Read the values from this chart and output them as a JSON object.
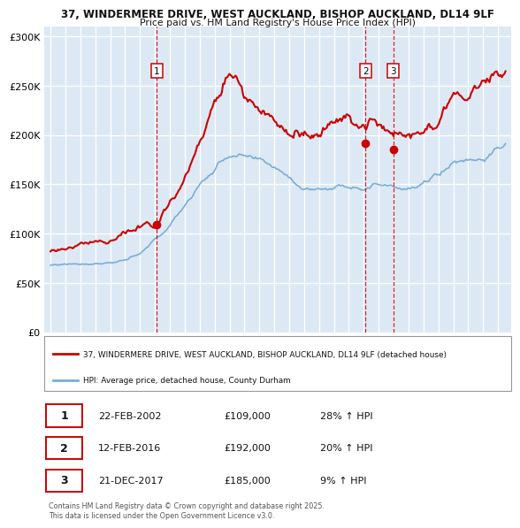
{
  "title1": "37, WINDERMERE DRIVE, WEST AUCKLAND, BISHOP AUCKLAND, DL14 9LF",
  "title2": "Price paid vs. HM Land Registry's House Price Index (HPI)",
  "legend_red": "37, WINDERMERE DRIVE, WEST AUCKLAND, BISHOP AUCKLAND, DL14 9LF (detached house)",
  "legend_blue": "HPI: Average price, detached house, County Durham",
  "footnote": "Contains HM Land Registry data © Crown copyright and database right 2025.\nThis data is licensed under the Open Government Licence v3.0.",
  "transactions": [
    {
      "num": 1,
      "date": "22-FEB-2002",
      "date_val": 2002.13,
      "price": 109000,
      "hpi_pct": "28% ↑ HPI"
    },
    {
      "num": 2,
      "date": "12-FEB-2016",
      "date_val": 2016.12,
      "price": 192000,
      "hpi_pct": "20% ↑ HPI"
    },
    {
      "num": 3,
      "date": "21-DEC-2017",
      "date_val": 2017.97,
      "price": 185000,
      "hpi_pct": "9% ↑ HPI"
    }
  ],
  "background_color": "#dce9f5",
  "grid_color": "#ffffff",
  "red_line_color": "#cc0000",
  "blue_line_color": "#7aadd4",
  "dashed_line_color": "#cc0000",
  "marker_color": "#cc0000",
  "ylim": [
    0,
    310000
  ],
  "yticks": [
    0,
    50000,
    100000,
    150000,
    200000,
    250000,
    300000
  ],
  "ytick_labels": [
    "£0",
    "£50K",
    "£100K",
    "£150K",
    "£200K",
    "£250K",
    "£300K"
  ]
}
